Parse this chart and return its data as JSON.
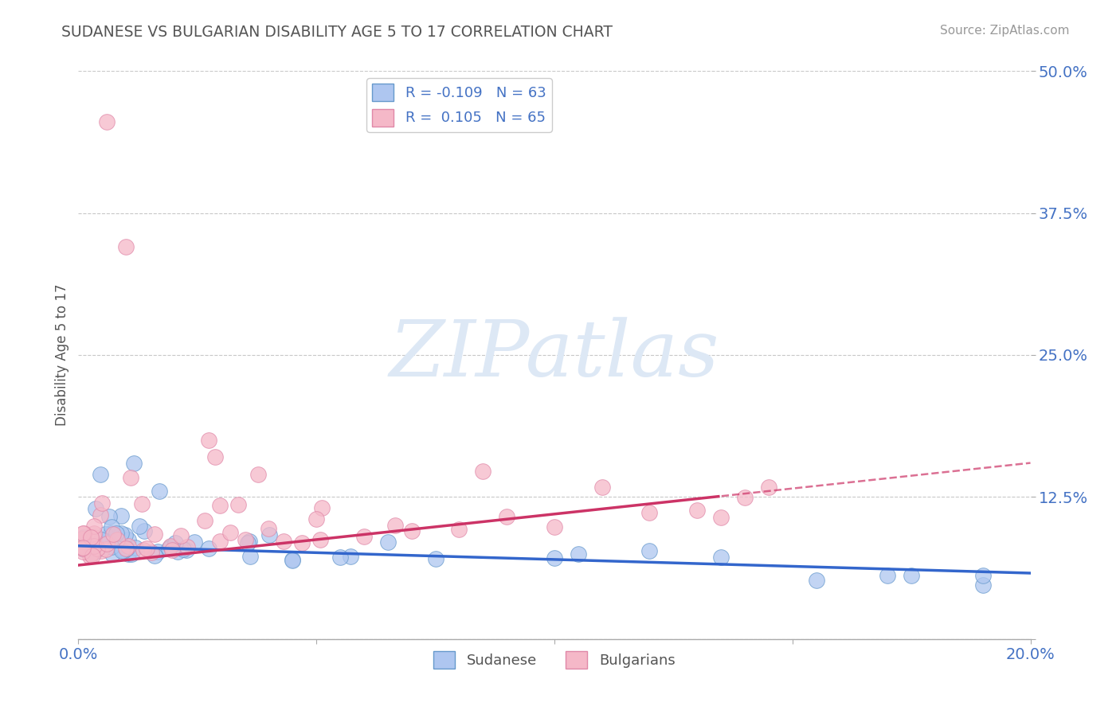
{
  "title": "SUDANESE VS BULGARIAN DISABILITY AGE 5 TO 17 CORRELATION CHART",
  "source": "Source: ZipAtlas.com",
  "ylabel": "Disability Age 5 to 17",
  "xlim": [
    0.0,
    0.2
  ],
  "ylim": [
    0.0,
    0.5
  ],
  "xticks": [
    0.0,
    0.05,
    0.1,
    0.15,
    0.2
  ],
  "yticks": [
    0.0,
    0.125,
    0.25,
    0.375,
    0.5
  ],
  "ytick_labels": [
    "",
    "12.5%",
    "25.0%",
    "37.5%",
    "50.0%"
  ],
  "xtick_labels": [
    "0.0%",
    "",
    "",
    "",
    "20.0%"
  ],
  "background_color": "#ffffff",
  "grid_color": "#c8c8c8",
  "sudanese_color": "#aec6f0",
  "bulgarian_color": "#f5b8c8",
  "sudanese_edge": "#6699cc",
  "bulgarian_edge": "#e088a8",
  "sudanese_R": -0.109,
  "sudanese_N": 63,
  "bulgarian_R": 0.105,
  "bulgarian_N": 65,
  "sudanese_line_color": "#3366cc",
  "bulgarian_line_color": "#cc3366",
  "watermark_text": "ZIPatlas",
  "title_color": "#555555",
  "source_color": "#999999",
  "tick_color": "#4472c4",
  "ylabel_color": "#555555"
}
